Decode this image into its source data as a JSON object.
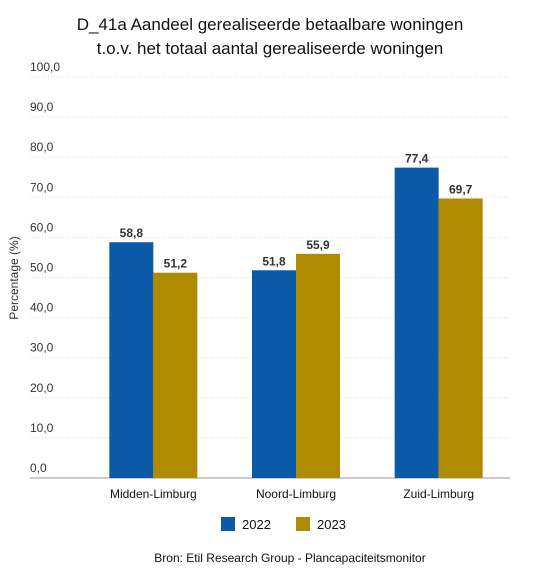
{
  "chart_data": {
    "type": "bar",
    "title": [
      "D_41a Aandeel gerealiseerde betaalbare woningen",
      "t.o.v. het totaal aantal gerealiseerde woningen"
    ],
    "y_label": "Percentage (%)",
    "source": "Bron: Etil Research Group - Plancapaciteitsmonitor",
    "categories": [
      "Midden-Limburg",
      "Noord-Limburg",
      "Zuid-Limburg"
    ],
    "series": [
      {
        "name": "2022",
        "color": "#0b5aa8",
        "values": [
          58.8,
          51.8,
          77.4
        ],
        "value_labels": [
          "58,8",
          "51,8",
          "77,4"
        ]
      },
      {
        "name": "2023",
        "color": "#b08a00",
        "values": [
          51.2,
          55.9,
          69.7
        ],
        "value_labels": [
          "51,2",
          "55,9",
          "69,7"
        ]
      }
    ],
    "ylim": [
      0,
      100
    ],
    "yticks": [
      {
        "value": 0,
        "label": "0,0"
      },
      {
        "value": 10,
        "label": "10,0"
      },
      {
        "value": 20,
        "label": "20,0"
      },
      {
        "value": 30,
        "label": "30,0"
      },
      {
        "value": 40,
        "label": "40,0"
      },
      {
        "value": 50,
        "label": "50,0"
      },
      {
        "value": 60,
        "label": "60,0"
      },
      {
        "value": 70,
        "label": "70,0"
      },
      {
        "value": 80,
        "label": "80,0"
      },
      {
        "value": 90,
        "label": "90,0"
      },
      {
        "value": 100,
        "label": "100,0"
      }
    ],
    "grid": true
  }
}
